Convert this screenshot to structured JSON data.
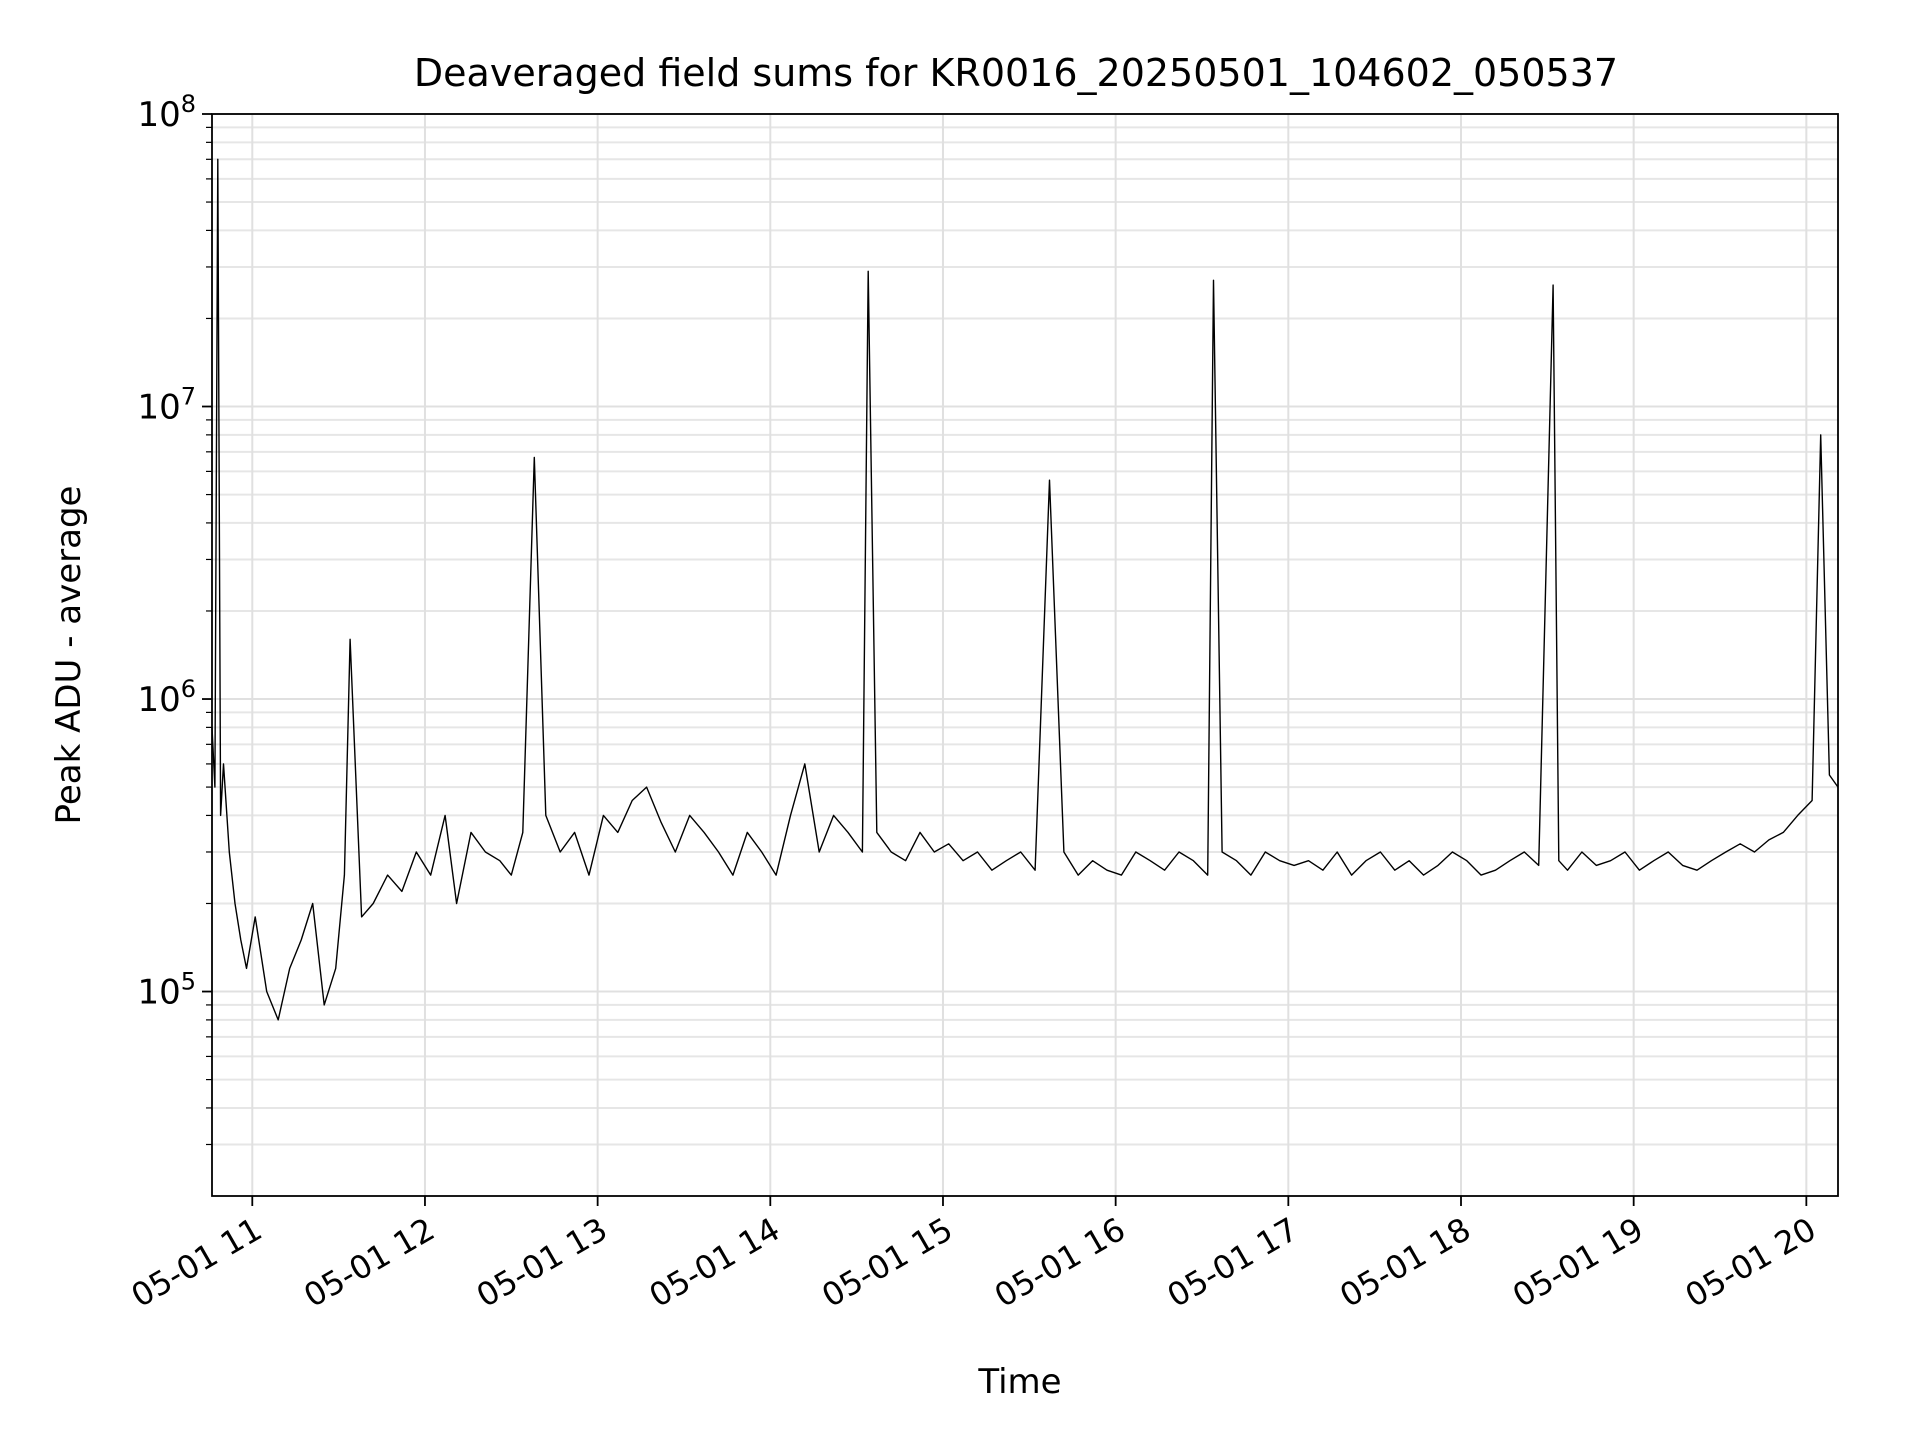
{
  "chart_data": {
    "type": "line",
    "title": "Deaveraged field sums for KR0016_20250501_104602_050537",
    "xlabel": "Time",
    "ylabel": "Peak ADU - average",
    "yscale": "log",
    "ylim": [
      20000,
      100000000
    ],
    "xlim": [
      "2025-05-01 10:46",
      "2025-05-01 20:11"
    ],
    "x_ticks": [
      {
        "t": "2025-05-01 11:00",
        "label": "05-01 11"
      },
      {
        "t": "2025-05-01 12:00",
        "label": "05-01 12"
      },
      {
        "t": "2025-05-01 13:00",
        "label": "05-01 13"
      },
      {
        "t": "2025-05-01 14:00",
        "label": "05-01 14"
      },
      {
        "t": "2025-05-01 15:00",
        "label": "05-01 15"
      },
      {
        "t": "2025-05-01 16:00",
        "label": "05-01 16"
      },
      {
        "t": "2025-05-01 17:00",
        "label": "05-01 17"
      },
      {
        "t": "2025-05-01 18:00",
        "label": "05-01 18"
      },
      {
        "t": "2025-05-01 19:00",
        "label": "05-01 19"
      },
      {
        "t": "2025-05-01 20:00",
        "label": "05-01 20"
      }
    ],
    "y_ticks": [
      {
        "v": 100000,
        "base": "10",
        "exp": "5"
      },
      {
        "v": 1000000,
        "base": "10",
        "exp": "6"
      },
      {
        "v": 10000000,
        "base": "10",
        "exp": "7"
      },
      {
        "v": 100000000,
        "base": "10",
        "exp": "8"
      }
    ],
    "grid": "major and minor",
    "line_color": "#000000",
    "series": [
      {
        "x": [
          "2025-05-01 10:46",
          "2025-05-01 10:47",
          "2025-05-01 10:48",
          "2025-05-01 10:49",
          "2025-05-01 10:50",
          "2025-05-01 10:52",
          "2025-05-01 10:54",
          "2025-05-01 10:56",
          "2025-05-01 10:58",
          "2025-05-01 11:01",
          "2025-05-01 11:05",
          "2025-05-01 11:09",
          "2025-05-01 11:13",
          "2025-05-01 11:17",
          "2025-05-01 11:21",
          "2025-05-01 11:25",
          "2025-05-01 11:29",
          "2025-05-01 11:32",
          "2025-05-01 11:34",
          "2025-05-01 11:38",
          "2025-05-01 11:42",
          "2025-05-01 11:47",
          "2025-05-01 11:52",
          "2025-05-01 11:57",
          "2025-05-01 12:02",
          "2025-05-01 12:07",
          "2025-05-01 12:11",
          "2025-05-01 12:16",
          "2025-05-01 12:21",
          "2025-05-01 12:26",
          "2025-05-01 12:30",
          "2025-05-01 12:34",
          "2025-05-01 12:38",
          "2025-05-01 12:42",
          "2025-05-01 12:47",
          "2025-05-01 12:52",
          "2025-05-01 12:57",
          "2025-05-01 13:02",
          "2025-05-01 13:07",
          "2025-05-01 13:12",
          "2025-05-01 13:17",
          "2025-05-01 13:22",
          "2025-05-01 13:27",
          "2025-05-01 13:32",
          "2025-05-01 13:37",
          "2025-05-01 13:42",
          "2025-05-01 13:47",
          "2025-05-01 13:52",
          "2025-05-01 13:57",
          "2025-05-01 14:02",
          "2025-05-01 14:07",
          "2025-05-01 14:12",
          "2025-05-01 14:17",
          "2025-05-01 14:22",
          "2025-05-01 14:27",
          "2025-05-01 14:32",
          "2025-05-01 14:34",
          "2025-05-01 14:37",
          "2025-05-01 14:42",
          "2025-05-01 14:47",
          "2025-05-01 14:52",
          "2025-05-01 14:57",
          "2025-05-01 15:02",
          "2025-05-01 15:07",
          "2025-05-01 15:12",
          "2025-05-01 15:17",
          "2025-05-01 15:22",
          "2025-05-01 15:27",
          "2025-05-01 15:32",
          "2025-05-01 15:37",
          "2025-05-01 15:42",
          "2025-05-01 15:47",
          "2025-05-01 15:52",
          "2025-05-01 15:57",
          "2025-05-01 16:02",
          "2025-05-01 16:07",
          "2025-05-01 16:12",
          "2025-05-01 16:17",
          "2025-05-01 16:22",
          "2025-05-01 16:27",
          "2025-05-01 16:32",
          "2025-05-01 16:34",
          "2025-05-01 16:37",
          "2025-05-01 16:42",
          "2025-05-01 16:47",
          "2025-05-01 16:52",
          "2025-05-01 16:57",
          "2025-05-01 17:02",
          "2025-05-01 17:07",
          "2025-05-01 17:12",
          "2025-05-01 17:17",
          "2025-05-01 17:22",
          "2025-05-01 17:27",
          "2025-05-01 17:32",
          "2025-05-01 17:37",
          "2025-05-01 17:42",
          "2025-05-01 17:47",
          "2025-05-01 17:52",
          "2025-05-01 17:57",
          "2025-05-01 18:02",
          "2025-05-01 18:07",
          "2025-05-01 18:12",
          "2025-05-01 18:17",
          "2025-05-01 18:22",
          "2025-05-01 18:27",
          "2025-05-01 18:32",
          "2025-05-01 18:34",
          "2025-05-01 18:37",
          "2025-05-01 18:42",
          "2025-05-01 18:47",
          "2025-05-01 18:52",
          "2025-05-01 18:57",
          "2025-05-01 19:02",
          "2025-05-01 19:07",
          "2025-05-01 19:12",
          "2025-05-01 19:17",
          "2025-05-01 19:22",
          "2025-05-01 19:27",
          "2025-05-01 19:32",
          "2025-05-01 19:37",
          "2025-05-01 19:42",
          "2025-05-01 19:47",
          "2025-05-01 19:52",
          "2025-05-01 19:57",
          "2025-05-01 20:02",
          "2025-05-01 20:05",
          "2025-05-01 20:08",
          "2025-05-01 20:11"
        ],
        "y": [
          800000,
          500000,
          70000000,
          400000,
          600000,
          300000,
          200000,
          150000,
          120000,
          180000,
          100000,
          80000,
          120000,
          150000,
          200000,
          90000,
          120000,
          250000,
          1600000,
          180000,
          200000,
          250000,
          220000,
          300000,
          250000,
          400000,
          200000,
          350000,
          300000,
          280000,
          250000,
          350000,
          6700000,
          400000,
          300000,
          350000,
          250000,
          400000,
          350000,
          450000,
          500000,
          380000,
          300000,
          400000,
          350000,
          300000,
          250000,
          350000,
          300000,
          250000,
          400000,
          600000,
          300000,
          400000,
          350000,
          300000,
          29000000,
          350000,
          300000,
          280000,
          350000,
          300000,
          320000,
          280000,
          300000,
          260000,
          280000,
          300000,
          260000,
          5600000,
          300000,
          250000,
          280000,
          260000,
          250000,
          300000,
          280000,
          260000,
          300000,
          280000,
          250000,
          27000000,
          300000,
          280000,
          250000,
          300000,
          280000,
          270000,
          280000,
          260000,
          300000,
          250000,
          280000,
          300000,
          260000,
          280000,
          250000,
          270000,
          300000,
          280000,
          250000,
          260000,
          280000,
          300000,
          270000,
          26000000,
          280000,
          260000,
          300000,
          270000,
          280000,
          300000,
          260000,
          280000,
          300000,
          270000,
          260000,
          280000,
          300000,
          320000,
          300000,
          330000,
          350000,
          400000,
          450000,
          8000000,
          550000,
          500000
        ]
      }
    ]
  }
}
